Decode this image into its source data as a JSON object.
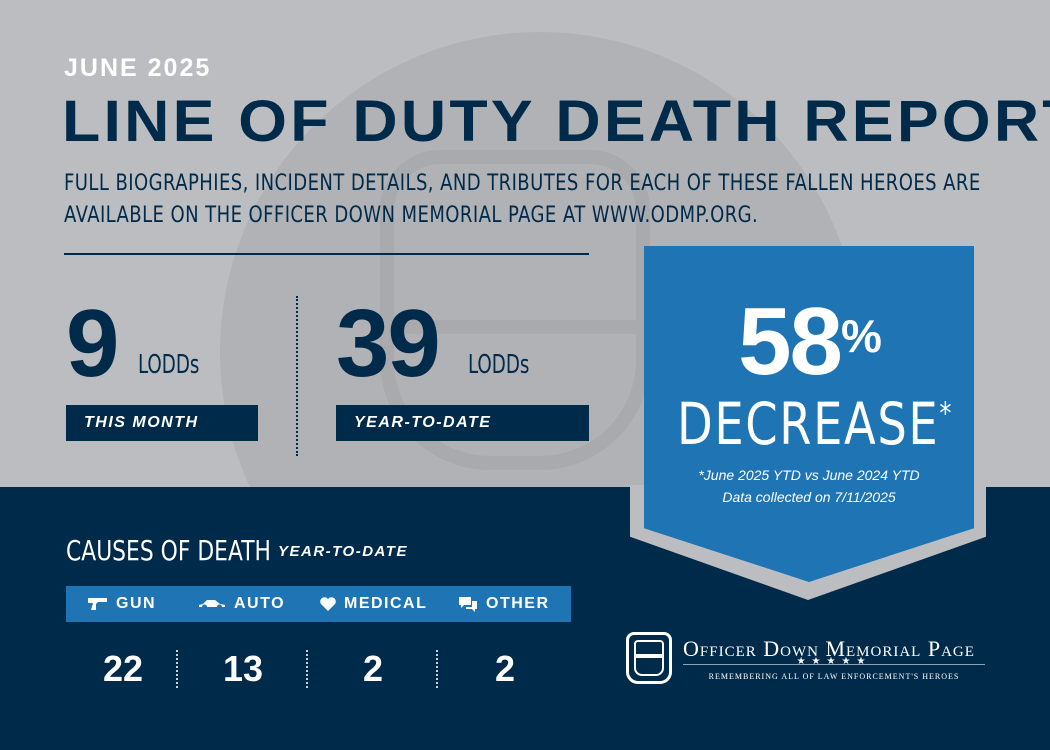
{
  "header": {
    "month": "JUNE 2025",
    "title": "LINE OF DUTY DEATH REPORT",
    "subtitle": "FULL BIOGRAPHIES, INCIDENT DETAILS, AND TRIBUTES FOR EACH OF THESE FALLEN HEROES ARE AVAILABLE ON THE OFFICER DOWN MEMORIAL PAGE AT WWW.ODMP.ORG."
  },
  "stats": {
    "month_count": "9",
    "month_unit": "LODDs",
    "month_label": "THIS MONTH",
    "ytd_count": "39",
    "ytd_unit": "LODDs",
    "ytd_label": "YEAR-TO-DATE"
  },
  "callout": {
    "percent": "58",
    "percent_sign": "%",
    "change": "DECREASE",
    "asterisk": "*",
    "note_line1": "*June 2025 YTD vs June 2024 YTD",
    "note_line2": "Data collected on 7/11/2025"
  },
  "causes": {
    "title": "CAUSES OF DEATH",
    "subtitle": "YEAR-TO-DATE",
    "items": [
      {
        "label": "GUN",
        "icon": "gun-icon",
        "count": "22"
      },
      {
        "label": "AUTO",
        "icon": "car-icon",
        "count": "13"
      },
      {
        "label": "MEDICAL",
        "icon": "heart-icon",
        "count": "2"
      },
      {
        "label": "OTHER",
        "icon": "chat-bubbles-icon",
        "count": "2"
      }
    ]
  },
  "logo": {
    "name": "Officer Down Memorial Page",
    "stars": "★★★★★",
    "tagline": "Remembering all of law enforcement's heroes"
  },
  "colors": {
    "navy": "#002a4a",
    "blue": "#1f75b4",
    "gray": "#bcbdc0",
    "white": "#ffffff"
  }
}
